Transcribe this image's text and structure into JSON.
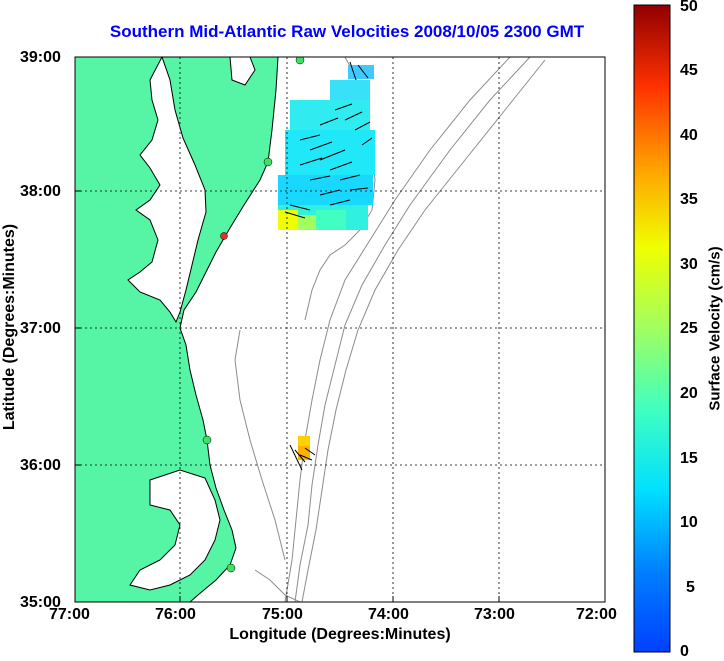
{
  "title": "Southern Mid-Atlantic Raw Velocities 2008/10/05 2300 GMT",
  "axes": {
    "xlabel": "Longitude (Degrees:Minutes)",
    "ylabel": "Latitude (Degrees:Minutes)",
    "x_ticks": [
      "77:00",
      "76:00",
      "75:00",
      "74:00",
      "73:00",
      "72:00"
    ],
    "y_ticks": [
      "39:00",
      "38:00",
      "37:00",
      "36:00",
      "35:00"
    ]
  },
  "colorbar": {
    "label": "Surface Velocity (cm/s)",
    "ticks": [
      "50",
      "45",
      "40",
      "35",
      "30",
      "25",
      "20",
      "15",
      "10",
      "5",
      "0"
    ],
    "range": [
      0,
      50
    ]
  },
  "colors": {
    "land": "#55f5a5",
    "coastline": "#000000",
    "bathymetry": "#8c8c8c",
    "title": "#0000ff"
  }
}
